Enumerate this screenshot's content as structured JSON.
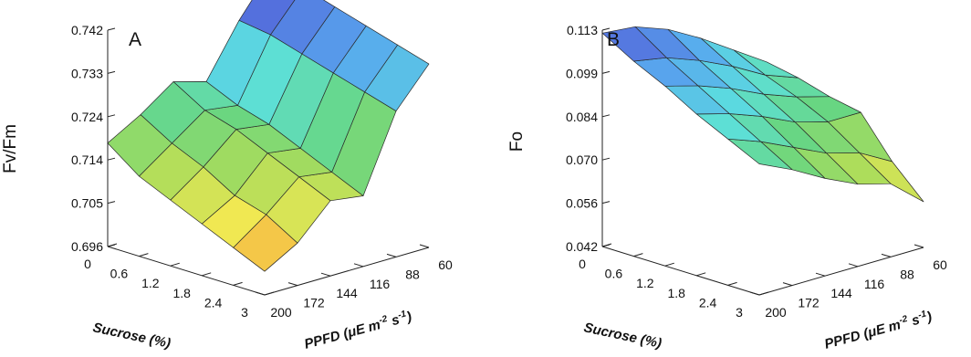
{
  "chart_data": [
    {
      "type": "surface3d",
      "panel_label": "A",
      "zlabel": "Fv/Fm",
      "xlabel": "Sucrose (%)",
      "ylabel_main": "PPFD (μE m",
      "ylabel_sup1": "-2",
      "ylabel_mid": " s",
      "ylabel_sup2": "-1",
      "ylabel_end": ")",
      "x_ticks": [
        "0",
        "0.6",
        "1.2",
        "1.8",
        "2.4",
        "3"
      ],
      "y_ticks": [
        "200",
        "172",
        "144",
        "116",
        "88",
        "60"
      ],
      "z_ticks": [
        "0.696",
        "0.705",
        "0.714",
        "0.724",
        "0.733",
        "0.742"
      ],
      "x": [
        0,
        0.6,
        1.2,
        1.8,
        2.4,
        3
      ],
      "y": [
        200,
        172,
        144,
        116,
        88,
        60
      ],
      "zlim": [
        0.696,
        0.742
      ],
      "z": [
        [
          0.718,
          0.713,
          0.71,
          0.707,
          0.704,
          0.701
        ],
        [
          0.722,
          0.718,
          0.715,
          0.711,
          0.709,
          0.705
        ],
        [
          0.727,
          0.723,
          0.721,
          0.718,
          0.715,
          0.712
        ],
        [
          0.725,
          0.722,
          0.72,
          0.717,
          0.714,
          0.711
        ],
        [
          0.736,
          0.735,
          0.733,
          0.731,
          0.729,
          0.727
        ],
        [
          0.745,
          0.743,
          0.741,
          0.739,
          0.737,
          0.735
        ]
      ]
    },
    {
      "type": "surface3d",
      "panel_label": "B",
      "zlabel": "Fo",
      "xlabel": "Sucrose (%)",
      "ylabel_main": "PPFD (μE m",
      "ylabel_sup1": "-2",
      "ylabel_mid": " s",
      "ylabel_sup2": "-1",
      "ylabel_end": ")",
      "x_ticks": [
        "0",
        "0.6",
        "1.2",
        "1.8",
        "2.4",
        "3"
      ],
      "y_ticks": [
        "200",
        "172",
        "144",
        "116",
        "88",
        "60"
      ],
      "z_ticks": [
        "0.042",
        "0.056",
        "0.070",
        "0.084",
        "0.099",
        "0.113"
      ],
      "x": [
        0,
        0.6,
        1.2,
        1.8,
        2.4,
        3
      ],
      "y": [
        200,
        172,
        144,
        116,
        88,
        60
      ],
      "zlim": [
        0.042,
        0.113
      ],
      "z": [
        [
          0.112,
          0.106,
          0.101,
          0.095,
          0.09,
          0.085
        ],
        [
          0.111,
          0.104,
          0.098,
          0.092,
          0.086,
          0.08
        ],
        [
          0.107,
          0.1,
          0.094,
          0.088,
          0.081,
          0.074
        ],
        [
          0.101,
          0.095,
          0.089,
          0.083,
          0.076,
          0.069
        ],
        [
          0.094,
          0.089,
          0.085,
          0.08,
          0.073,
          0.066
        ],
        [
          0.087,
          0.085,
          0.082,
          0.08,
          0.067,
          0.057
        ]
      ]
    }
  ]
}
